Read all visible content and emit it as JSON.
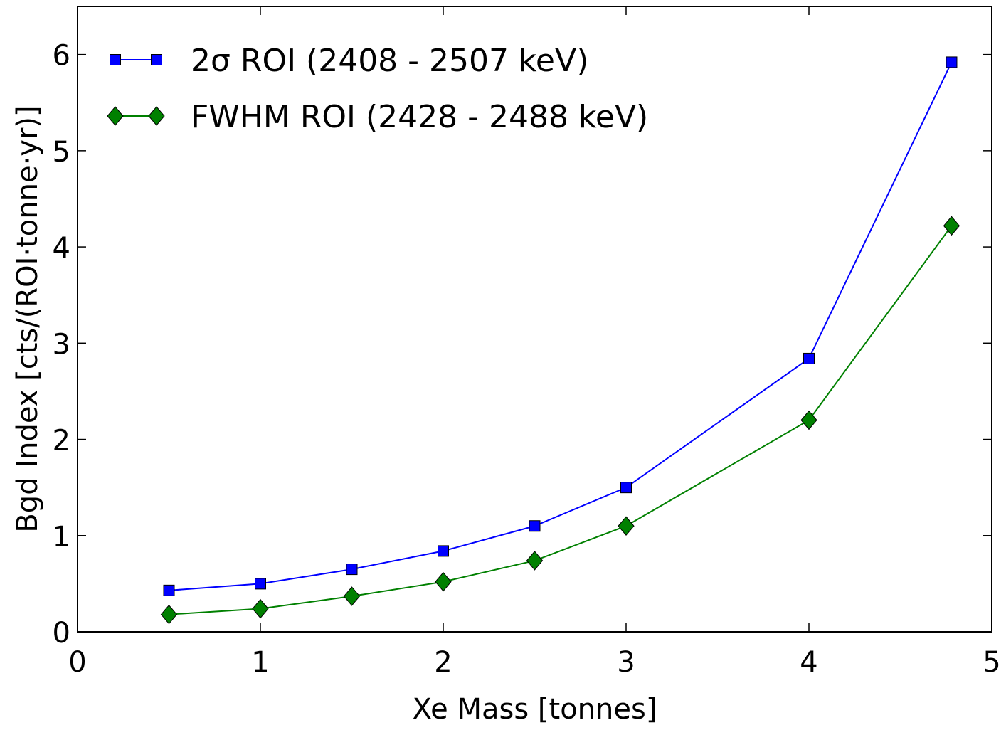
{
  "chart_data": {
    "type": "line",
    "title": "",
    "xlabel": "Xe Mass [tonnes]",
    "ylabel": "Bgd Index [cts/(ROI·tonne·yr)]",
    "xlim": [
      0,
      5
    ],
    "ylim": [
      0,
      6.5
    ],
    "xticks": [
      0,
      1,
      2,
      3,
      4,
      5
    ],
    "yticks": [
      0,
      1,
      2,
      3,
      4,
      5,
      6
    ],
    "xtick_labels": [
      "0",
      "1",
      "2",
      "3",
      "4",
      "5"
    ],
    "ytick_labels": [
      "0",
      "1",
      "2",
      "3",
      "4",
      "5",
      "6"
    ],
    "grid": false,
    "legend_position": "top-left",
    "x": [
      0.5,
      1.0,
      1.5,
      2.0,
      2.5,
      3.0,
      4.0,
      4.78
    ],
    "series": [
      {
        "name": "2σ ROI (2408 - 2507 keV)",
        "color": "#0000ff",
        "marker": "square",
        "values": [
          0.43,
          0.5,
          0.65,
          0.84,
          1.1,
          1.5,
          2.84,
          5.92
        ]
      },
      {
        "name": "FWHM ROI (2428 - 2488 keV)",
        "color": "#008000",
        "marker": "diamond",
        "values": [
          0.18,
          0.24,
          0.37,
          0.52,
          0.74,
          1.1,
          2.2,
          4.22
        ]
      }
    ]
  }
}
